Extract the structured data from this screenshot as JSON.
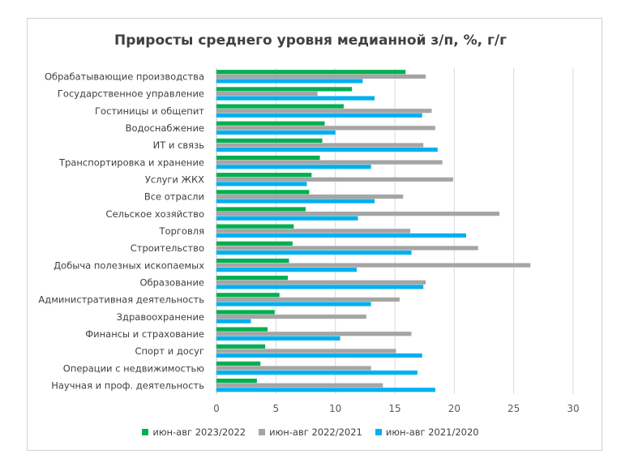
{
  "chart_data": {
    "type": "bar",
    "orientation": "horizontal",
    "title": "Приросты среднего уровня медианной з/п, %, г/г",
    "categories": [
      "Обрабатывающие производства",
      "Государственное управление",
      "Гостиницы и общепит",
      "Водоснабжение",
      "ИТ и связь",
      "Транспортировка и хранение",
      "Услуги ЖКХ",
      "Все отрасли",
      "Сельское хозяйство",
      "Торговля",
      "Строительство",
      "Добыча полезных ископаемых",
      "Образование",
      "Административная деятельность",
      "Здравоохранение",
      "Финансы и страхование",
      "Спорт и досуг",
      "Операции с недвижимостью",
      "Научная и проф. деятельность"
    ],
    "series": [
      {
        "name": "июн-авг 2023/2022",
        "color": "#00b050",
        "values": [
          15.9,
          11.4,
          10.7,
          9.1,
          8.9,
          8.7,
          8.0,
          7.8,
          7.5,
          6.5,
          6.4,
          6.1,
          6.0,
          5.3,
          4.9,
          4.3,
          4.1,
          3.7,
          3.4
        ]
      },
      {
        "name": "июн-авг 2022/2021",
        "color": "#a5a5a5",
        "values": [
          17.6,
          8.5,
          18.1,
          18.4,
          17.4,
          19.0,
          19.9,
          15.7,
          23.8,
          16.3,
          22.0,
          26.4,
          17.6,
          15.4,
          12.6,
          16.4,
          15.1,
          13.0,
          14.0
        ]
      },
      {
        "name": "июн-авг 2021/2020",
        "color": "#00b0f0",
        "values": [
          12.3,
          13.3,
          17.3,
          10.0,
          18.6,
          13.0,
          7.6,
          13.3,
          11.9,
          21.0,
          16.4,
          11.8,
          17.4,
          13.0,
          2.9,
          10.4,
          17.3,
          16.9,
          18.4
        ]
      }
    ],
    "xlim": [
      0,
      30
    ],
    "xticks": [
      "0",
      "5",
      "10",
      "15",
      "20",
      "25",
      "30"
    ],
    "grid": true,
    "legend": "bottom"
  }
}
